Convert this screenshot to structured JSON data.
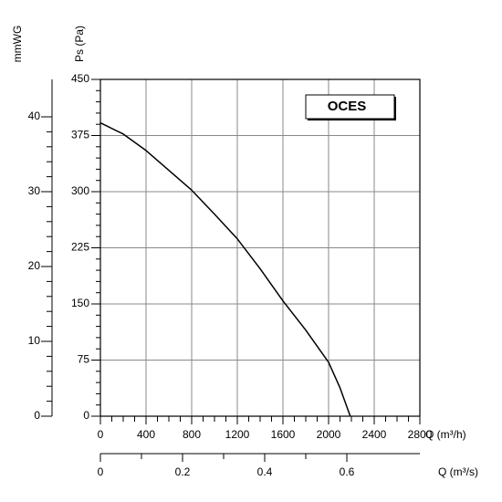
{
  "chart_data": {
    "type": "line",
    "x": [
      0,
      200,
      400,
      800,
      1000,
      1200,
      1400,
      1600,
      1800,
      2000,
      2100,
      2190
    ],
    "series": [
      {
        "name": "OCES",
        "color": "#000000",
        "values": [
          392,
          377,
          355,
          302,
          270,
          237,
          197,
          154,
          115,
          72,
          38,
          0
        ]
      }
    ],
    "xlabel": "Q (m³/h)",
    "xlim": [
      0,
      2800
    ],
    "xticks": [
      0,
      400,
      800,
      1200,
      1600,
      2000,
      2400,
      2800
    ],
    "ylabel": "Ps (Pa)",
    "ylim": [
      0,
      450
    ],
    "yticks": [
      0,
      75,
      150,
      225,
      300,
      375,
      450
    ],
    "y2label": "mmWG",
    "y2lim": [
      0,
      45
    ],
    "y2ticks": [
      0,
      10,
      20,
      30,
      40
    ],
    "x2label": "Q (m³/s)",
    "x2lim": [
      0,
      0.7778
    ],
    "x2ticks": [
      0,
      0.2,
      0.4,
      0.6
    ],
    "grid": true
  }
}
